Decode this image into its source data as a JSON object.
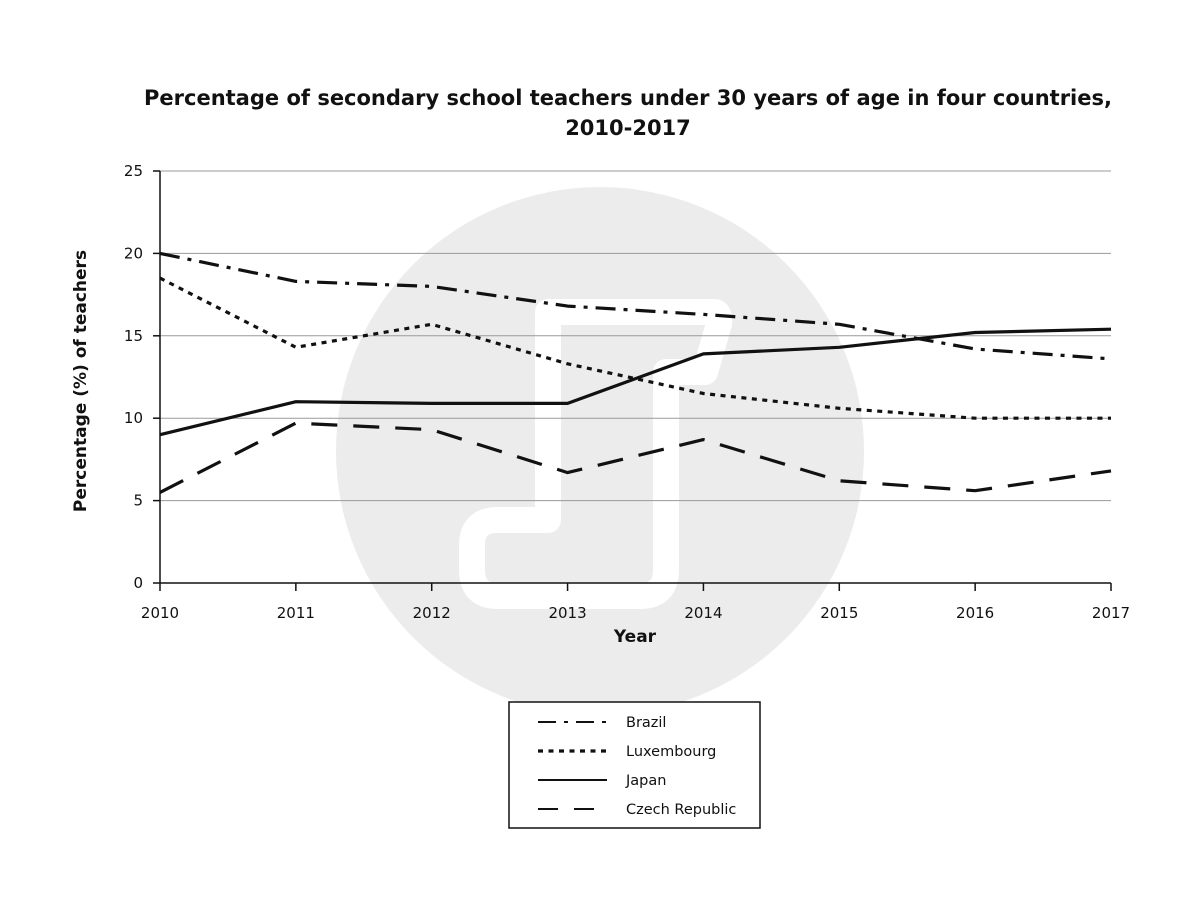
{
  "chart_data": {
    "type": "line",
    "title": [
      "Percentage of secondary school teachers under 30 years of age in four countries,",
      "2010-2017"
    ],
    "xlabel": "Year",
    "ylabel": "Percentage (%) of teachers",
    "x": [
      "2010",
      "2011",
      "2012",
      "2013",
      "2014",
      "2015",
      "2016",
      "2017"
    ],
    "yticks": [
      "0",
      "5",
      "10",
      "15",
      "20",
      "25"
    ],
    "ylim": [
      0,
      25
    ],
    "grid": "horizontal",
    "legend_position": "bottom-center",
    "series": [
      {
        "name": "Brazil",
        "style": "dash-dot",
        "values": [
          20.0,
          18.3,
          18.0,
          16.8,
          16.3,
          15.7,
          14.2,
          13.6
        ]
      },
      {
        "name": "Luxembourg",
        "style": "dotted",
        "values": [
          18.5,
          14.3,
          15.7,
          13.3,
          11.5,
          10.6,
          10.0,
          10.0
        ]
      },
      {
        "name": "Japan",
        "style": "solid",
        "values": [
          9.0,
          11.0,
          10.9,
          10.9,
          13.9,
          14.3,
          15.2,
          15.4
        ]
      },
      {
        "name": "Czech Republic",
        "style": "dashed",
        "values": [
          5.5,
          9.7,
          9.3,
          6.7,
          8.7,
          6.2,
          5.6,
          6.8
        ]
      }
    ],
    "colors": {
      "line": "#111111",
      "grid": "#9a9a9a",
      "watermark": "#ececec"
    },
    "watermark_icon": "brand-logo-watermark"
  }
}
